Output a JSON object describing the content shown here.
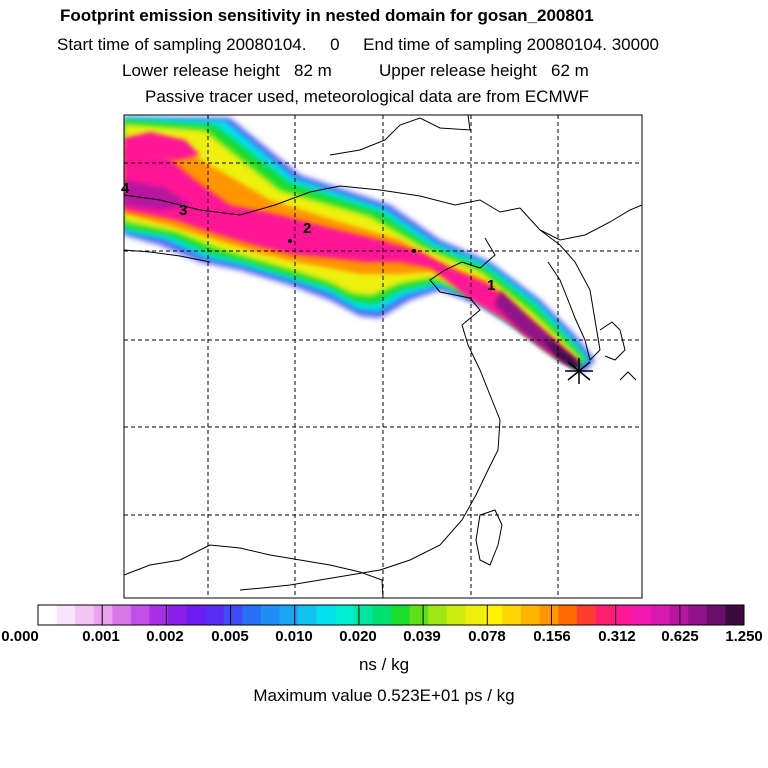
{
  "title": "Footprint emission sensitivity in nested domain for gosan_200801",
  "line2": "Start time of sampling 20080104.     0     End time of sampling 20080104. 30000",
  "line3": "Lower release height   82 m          Upper release height   62 m",
  "line4": "Passive tracer used, meteorological data are from ECMWF",
  "markers": [
    "1",
    "2",
    "3",
    "4"
  ],
  "legend": {
    "ticks": [
      "0.000",
      "0.001",
      "0.002",
      "0.005",
      "0.010",
      "0.020",
      "0.039",
      "0.078",
      "0.156",
      "0.312",
      "0.625",
      "1.250"
    ],
    "colors": [
      "#ffffff",
      "#fbe3fb",
      "#f3c4f3",
      "#eaa3ee",
      "#d977e9",
      "#c24fe8",
      "#a730e6",
      "#8a1fea",
      "#6f1cf0",
      "#5a2df4",
      "#3f4cf7",
      "#2a6ff7",
      "#1f8df5",
      "#1ca6f2",
      "#12c2f0",
      "#00e1ef",
      "#00eed0",
      "#00e8a0",
      "#00e070",
      "#19dc2d",
      "#5fdf18",
      "#9fe714",
      "#ccec10",
      "#eef00c",
      "#fff300",
      "#ffd400",
      "#ffb600",
      "#ff9500",
      "#ff6a00",
      "#ff3d2e",
      "#ff1f6e",
      "#ff1896",
      "#f218b0",
      "#d919b4",
      "#b8169e",
      "#8f1288",
      "#6b0f6c",
      "#3d0a40"
    ],
    "units": "ns / kg",
    "max_label": "Maximum value  0.523E+01 ps / kg"
  }
}
